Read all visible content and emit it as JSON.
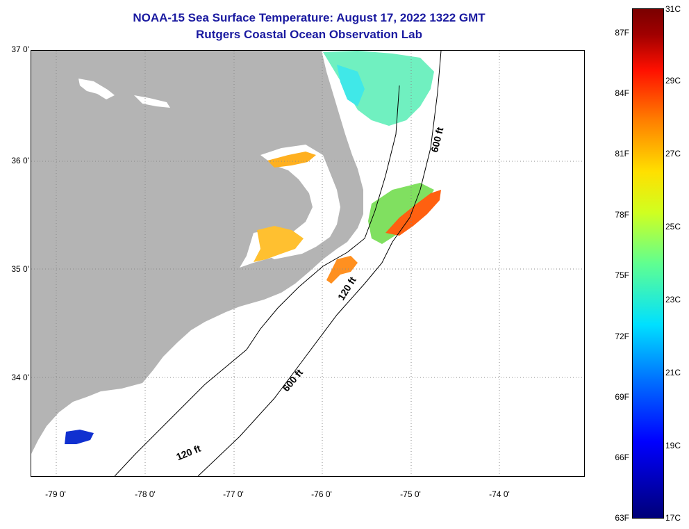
{
  "header": {
    "title": "NOAA-15 Sea Surface Temperature:  August 17, 2022 1322 GMT",
    "subtitle": "Rutgers Coastal Ocean Observation Lab"
  },
  "map": {
    "latitude_labels": [
      "37 0'",
      "36 0'",
      "35 0'",
      "34 0'"
    ],
    "longitude_labels": [
      "-79 0'",
      "-78 0'",
      "-77 0'",
      "-76 0'",
      "-75 0'",
      "-74 0'"
    ],
    "isobath_labels": [
      "600 ft",
      "120 ft",
      "600 ft",
      "120 ft"
    ],
    "land_color": "#b4b4b4"
  },
  "colorbar": {
    "fahrenheit_labels": [
      "87F",
      "84F",
      "81F",
      "78F",
      "75F",
      "72F",
      "69F",
      "66F",
      "63F"
    ],
    "celsius_labels": [
      "31C",
      "29C",
      "27C",
      "25C",
      "23C",
      "21C",
      "19C",
      "17C"
    ]
  }
}
